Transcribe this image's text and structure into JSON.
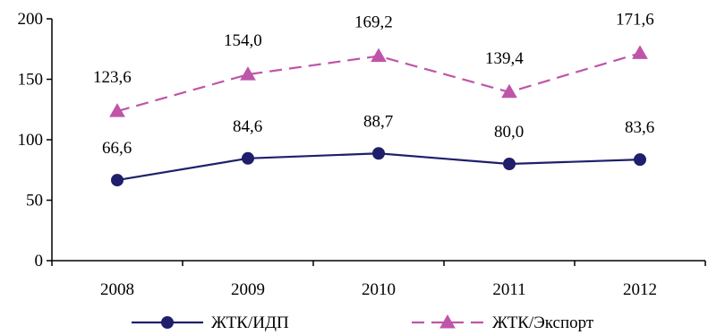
{
  "chart_data": {
    "type": "line",
    "title": "",
    "xlabel": "",
    "ylabel": "",
    "categories": [
      "2008",
      "2009",
      "2010",
      "2011",
      "2012"
    ],
    "ylim": [
      0,
      200
    ],
    "yticks": [
      0,
      50,
      100,
      150,
      200
    ],
    "ytick_labels": [
      "0",
      "50",
      "100",
      "150",
      "200"
    ],
    "grid": false,
    "legend_position": "bottom",
    "series": [
      {
        "name": "ЖТК/ИДП",
        "values": [
          66.6,
          84.6,
          88.7,
          80.0,
          83.6
        ],
        "labels": [
          "66,6",
          "84,6",
          "88,7",
          "80,0",
          "83,6"
        ],
        "color": "#1f1f6b",
        "line_style": "solid",
        "marker": "circle"
      },
      {
        "name": "ЖТК/Экспорт",
        "values": [
          123.6,
          154.0,
          169.2,
          139.4,
          171.6
        ],
        "labels": [
          "123,6",
          "154,0",
          "169,2",
          "139,4",
          "171,6"
        ],
        "color": "#bf55a8",
        "line_style": "dashed",
        "marker": "triangle"
      }
    ]
  }
}
